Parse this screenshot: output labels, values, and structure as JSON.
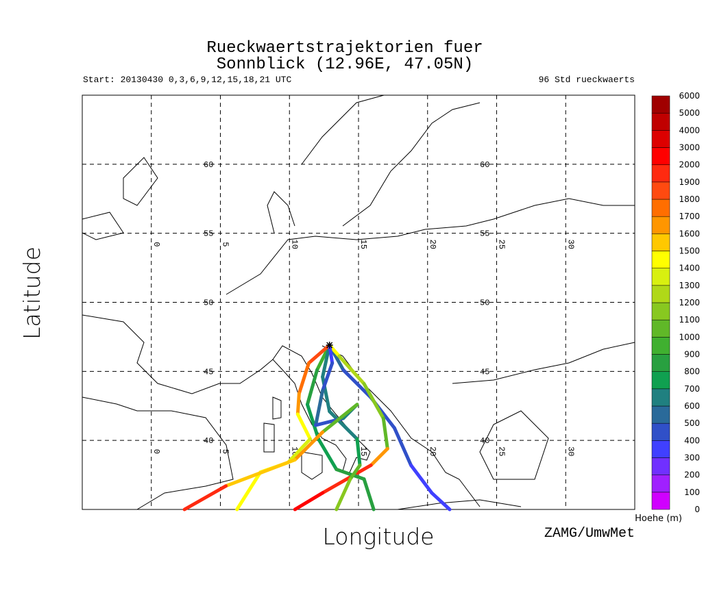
{
  "header": {
    "title_line1": "Rueckwaertstrajektorien fuer",
    "title_line2": "Sonnblick (12.96E, 47.05N)",
    "start": "Start: 20130430 0,3,6,9,12,15,18,21 UTC",
    "duration": "96 Std rueckwaerts"
  },
  "map": {
    "xlabel": "Longitude",
    "ylabel": "Latitude",
    "credit": "ZAMG/UmwMet",
    "xlim": [
      -5,
      35
    ],
    "ylim": [
      35,
      65
    ],
    "xticks": [
      0,
      5,
      10,
      15,
      20,
      25,
      30
    ],
    "yticks": [
      40,
      45,
      50,
      55,
      60
    ],
    "trajectories": [
      {
        "lon": [
          12.9,
          13.9,
          15.9,
          17.6,
          18.8,
          20.3,
          21.6
        ],
        "lat": [
          46.9,
          45.1,
          43.1,
          40.9,
          38.2,
          36.2,
          35.0
        ],
        "height": [
          500,
          400,
          400,
          400,
          300,
          300,
          300
        ]
      },
      {
        "lon": [
          12.9,
          13.6,
          15.4,
          16.8,
          17.1,
          15.9,
          12.4,
          10.4
        ],
        "lat": [
          46.9,
          46.1,
          44.1,
          41.6,
          39.4,
          38.2,
          36.2,
          35.0
        ],
        "height": [
          1400,
          1200,
          1100,
          1000,
          1600,
          1900,
          2000,
          3000
        ]
      },
      {
        "lon": [
          12.9,
          12.0,
          11.3,
          12.1,
          13.4,
          15.4,
          16.1
        ],
        "lat": [
          46.9,
          45.1,
          42.6,
          40.1,
          37.9,
          37.2,
          35.0
        ],
        "height": [
          900,
          800,
          700,
          700,
          800,
          800,
          900
        ]
      },
      {
        "lon": [
          12.9,
          12.4,
          12.9,
          14.9,
          15.1,
          14.4,
          13.4
        ],
        "lat": [
          46.9,
          44.6,
          42.1,
          40.1,
          38.2,
          37.2,
          35.0
        ],
        "height": [
          600,
          600,
          600,
          700,
          1000,
          1100,
          2000
        ]
      },
      {
        "lon": [
          12.9,
          11.4,
          10.7,
          10.6,
          11.5,
          9.9,
          7.9,
          6.2
        ],
        "lat": [
          46.9,
          45.6,
          43.4,
          41.9,
          40.1,
          38.4,
          37.7,
          35.0
        ],
        "height": [
          1800,
          1700,
          1600,
          1400,
          1300,
          1400,
          1400,
          1400
        ]
      },
      {
        "lon": [
          12.9,
          13.1,
          12.4,
          11.9,
          13.9,
          14.9,
          12.4,
          10.4,
          5.4,
          2.4
        ],
        "lat": [
          46.9,
          45.6,
          43.6,
          41.1,
          41.6,
          42.6,
          40.6,
          38.6,
          36.7,
          35.0
        ],
        "height": [
          300,
          400,
          500,
          400,
          600,
          1000,
          1600,
          1500,
          1900,
          1200
        ]
      }
    ]
  },
  "colorbar": {
    "title": "Hoehe (m)",
    "levels": [
      0,
      100,
      200,
      300,
      400,
      500,
      600,
      700,
      800,
      900,
      1000,
      1100,
      1200,
      1300,
      1400,
      1500,
      1600,
      1700,
      1800,
      1900,
      2000,
      3000,
      4000,
      5000,
      6000
    ],
    "colors": [
      "#d000ff",
      "#a020ff",
      "#7030ff",
      "#4040ff",
      "#3050c8",
      "#2a6a9a",
      "#208080",
      "#10a050",
      "#28a040",
      "#40b030",
      "#60b828",
      "#88c820",
      "#b0d818",
      "#d8f010",
      "#ffff00",
      "#ffc800",
      "#ff9600",
      "#ff6e00",
      "#ff4a10",
      "#ff2a10",
      "#ff0000",
      "#dd0000",
      "#c00000",
      "#a00000"
    ]
  }
}
